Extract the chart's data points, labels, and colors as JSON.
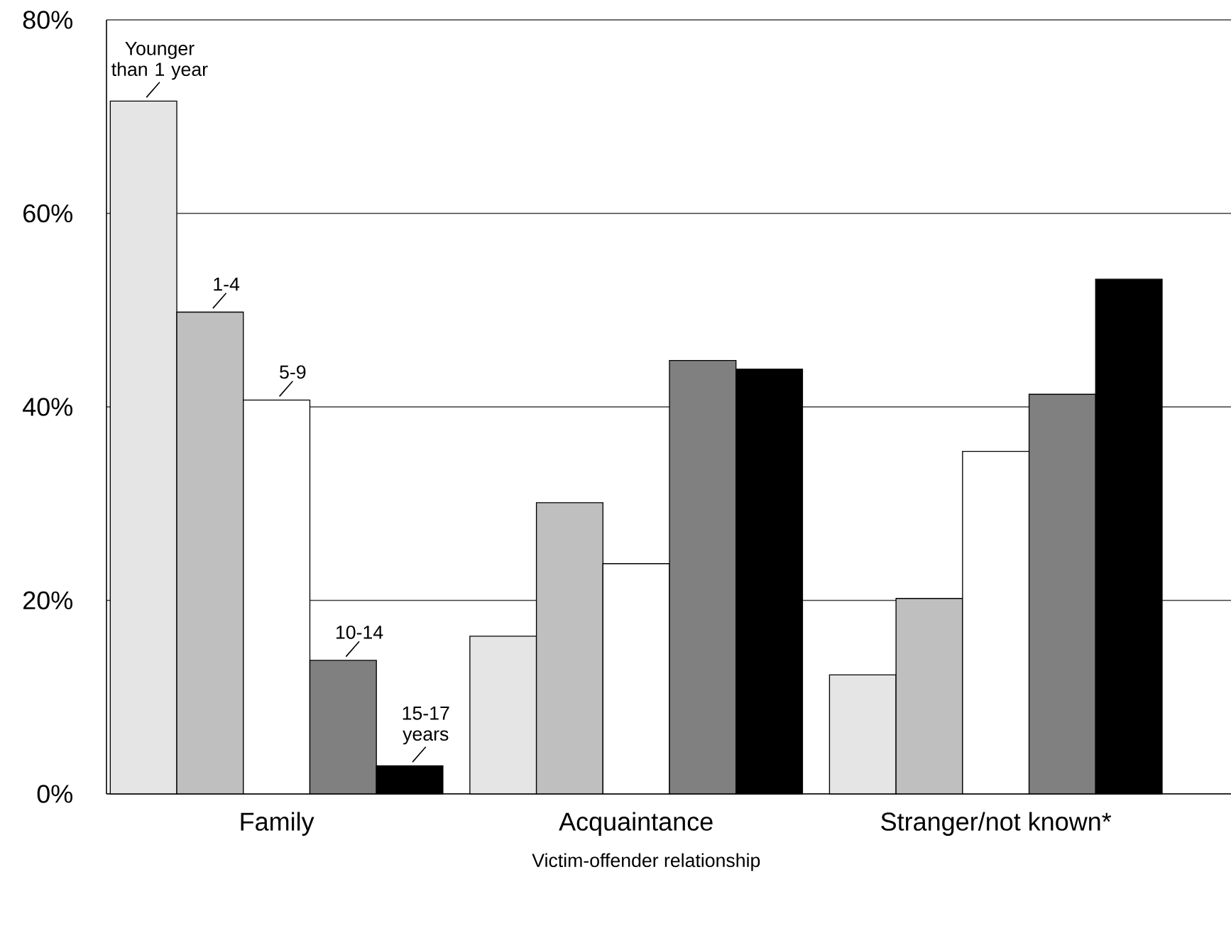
{
  "chart_data": {
    "type": "bar",
    "xlabel": "Victim-offender relationship",
    "categories": [
      "Family",
      "Acquaintance",
      "Stranger/not known*"
    ],
    "series": [
      {
        "name": "Younger than 1 year",
        "color": "#e5e5e5",
        "values": [
          71.6,
          16.3,
          12.3
        ]
      },
      {
        "name": "1-4",
        "color": "#bfbfbf",
        "values": [
          49.8,
          30.1,
          20.2
        ]
      },
      {
        "name": "5-9",
        "color": "#ffffff",
        "values": [
          40.7,
          23.8,
          35.4
        ]
      },
      {
        "name": "10-14",
        "color": "#808080",
        "values": [
          13.8,
          44.8,
          41.3
        ]
      },
      {
        "name": "15-17 years",
        "color": "#000000",
        "values": [
          2.9,
          43.9,
          53.2
        ]
      }
    ],
    "ylim": [
      0,
      80
    ],
    "yticks": [
      {
        "value": 0,
        "label": "0%"
      },
      {
        "value": 20,
        "label": "20%"
      },
      {
        "value": 40,
        "label": "40%"
      },
      {
        "value": 60,
        "label": "60%"
      },
      {
        "value": 80,
        "label": "80%"
      }
    ],
    "grid": "y"
  }
}
